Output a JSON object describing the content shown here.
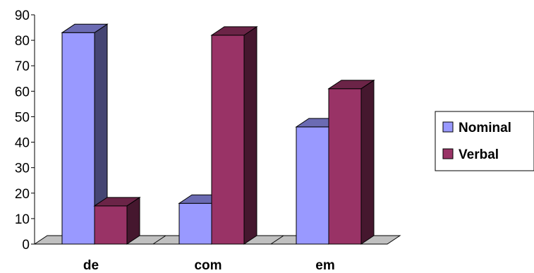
{
  "chart_data": {
    "type": "bar",
    "style": "3d-clustered-column",
    "categories": [
      "de",
      "com",
      "em"
    ],
    "series": [
      {
        "name": "Nominal",
        "values": [
          83,
          16,
          46
        ],
        "color": "#9999ff"
      },
      {
        "name": "Verbal",
        "values": [
          15,
          82,
          61
        ],
        "color": "#993366"
      }
    ],
    "ylim": [
      0,
      90
    ],
    "yticks": [
      "0",
      "10",
      "20",
      "30",
      "40",
      "50",
      "60",
      "70",
      "80",
      "90"
    ],
    "grid": false,
    "legend_position": "right",
    "title": "",
    "xlabel": "",
    "ylabel": ""
  }
}
